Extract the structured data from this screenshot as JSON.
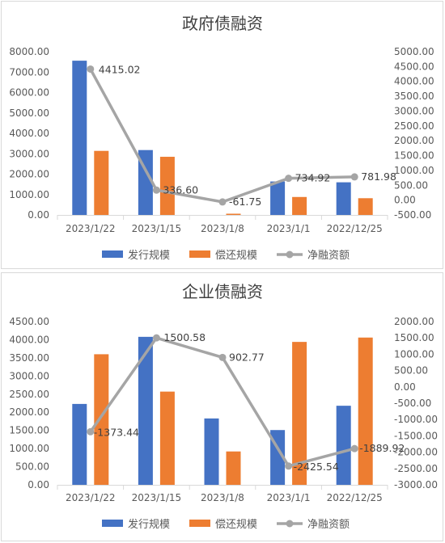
{
  "chart_data": [
    {
      "type": "bar",
      "title": "政府债融资",
      "categories": [
        "2023/1/22",
        "2023/1/15",
        "2023/1/8",
        "2023/1/1",
        "2022/12/25"
      ],
      "series": [
        {
          "name": "发行规模",
          "kind": "bar",
          "axis": "left",
          "color": "#4472C4",
          "values": [
            7560,
            3180,
            0,
            1640,
            1600
          ]
        },
        {
          "name": "偿还规模",
          "kind": "bar",
          "axis": "left",
          "color": "#ED7D31",
          "values": [
            3140,
            2850,
            60,
            880,
            820
          ]
        },
        {
          "name": "净融资额",
          "kind": "line",
          "axis": "right",
          "color": "#A5A5A5",
          "values": [
            4415.02,
            336.6,
            -61.75,
            734.92,
            781.98
          ],
          "labels": [
            "4415.02",
            "336.60",
            "-61.75",
            "734.92",
            "781.98"
          ]
        }
      ],
      "y_left": {
        "min": 0,
        "max": 8000,
        "ticks": [
          "0.00",
          "1000.00",
          "2000.00",
          "3000.00",
          "4000.00",
          "5000.00",
          "6000.00",
          "7000.00",
          "8000.00"
        ]
      },
      "y_right": {
        "min": -500,
        "max": 5000,
        "ticks": [
          "-500.00",
          "0.00",
          "500.00",
          "1000.00",
          "1500.00",
          "2000.00",
          "2500.00",
          "3000.00",
          "3500.00",
          "4000.00",
          "4500.00",
          "5000.00"
        ]
      },
      "grid": false,
      "legend": "bottom"
    },
    {
      "type": "bar",
      "title": "企业债融资",
      "categories": [
        "2023/1/22",
        "2023/1/15",
        "2023/1/8",
        "2023/1/1",
        "2022/12/25"
      ],
      "series": [
        {
          "name": "发行规模",
          "kind": "bar",
          "axis": "left",
          "color": "#4472C4",
          "values": [
            2230,
            4080,
            1830,
            1510,
            2180
          ]
        },
        {
          "name": "偿还规模",
          "kind": "bar",
          "axis": "left",
          "color": "#ED7D31",
          "values": [
            3600,
            2570,
            920,
            3940,
            4060
          ]
        },
        {
          "name": "净融资额",
          "kind": "line",
          "axis": "right",
          "color": "#A5A5A5",
          "values": [
            -1373.44,
            1500.58,
            902.77,
            -2425.54,
            -1889.92
          ],
          "labels": [
            "-1373.44",
            "1500.58",
            "902.77",
            "-2425.54",
            "-1889.92"
          ]
        }
      ],
      "y_left": {
        "min": 0,
        "max": 4500,
        "ticks": [
          "0.00",
          "500.00",
          "1000.00",
          "1500.00",
          "2000.00",
          "2500.00",
          "3000.00",
          "3500.00",
          "4000.00",
          "4500.00"
        ]
      },
      "y_right": {
        "min": -3000,
        "max": 2000,
        "ticks": [
          "-3000.00",
          "-2500.00",
          "-2000.00",
          "-1500.00",
          "-1000.00",
          "-500.00",
          "0.00",
          "500.00",
          "1000.00",
          "1500.00",
          "2000.00"
        ]
      },
      "grid": false,
      "legend": "bottom"
    }
  ]
}
